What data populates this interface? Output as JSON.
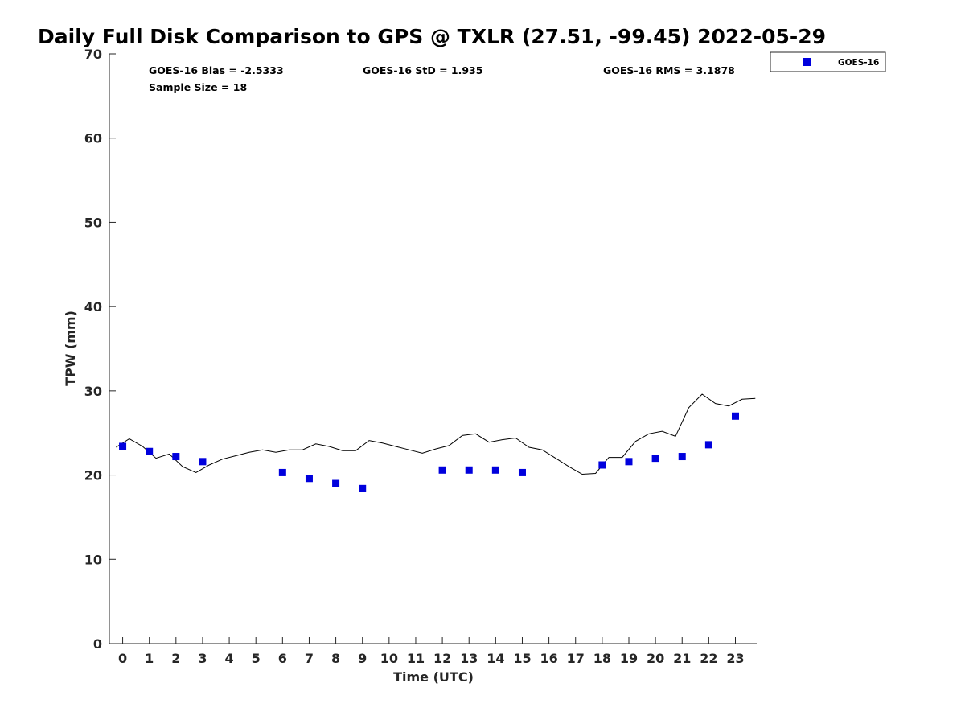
{
  "chart_data": {
    "type": "scatter",
    "title": "Daily Full Disk Comparison to GPS @ TXLR (27.51, -99.45) 2022-05-29",
    "xlabel": "Time (UTC)",
    "ylabel": "TPW (mm)",
    "xlim": [
      -0.5,
      23.8
    ],
    "ylim": [
      0,
      70
    ],
    "xticks": [
      0,
      1,
      2,
      3,
      4,
      5,
      6,
      7,
      8,
      9,
      10,
      11,
      12,
      13,
      14,
      15,
      16,
      17,
      18,
      19,
      20,
      21,
      22,
      23
    ],
    "yticks": [
      0,
      10,
      20,
      30,
      40,
      50,
      60,
      70
    ],
    "grid": false,
    "legend_position": "top-right-outside",
    "stats": {
      "bias": "GOES-16 Bias = -2.5333",
      "std": "GOES-16 StD = 1.935",
      "rms": "GOES-16 RMS = 3.1878",
      "sample": "Sample Size = 18"
    },
    "series": [
      {
        "name": "GOES-16",
        "kind": "scatter",
        "color": "#0000dd",
        "x": [
          0,
          1,
          2,
          3,
          6,
          7,
          8,
          9,
          12,
          13,
          14,
          15,
          18,
          19,
          20,
          21,
          22,
          23
        ],
        "y": [
          23.4,
          22.8,
          22.2,
          21.6,
          20.3,
          19.6,
          19.0,
          18.4,
          20.6,
          20.6,
          20.6,
          20.3,
          21.2,
          21.6,
          22.0,
          22.2,
          23.6,
          27.0
        ]
      },
      {
        "kind": "line",
        "color": "#000000",
        "x": [
          -0.25,
          0.25,
          0.75,
          1.25,
          1.75,
          2.25,
          2.75,
          3.25,
          3.75,
          4.25,
          4.75,
          5.25,
          5.75,
          6.25,
          6.75,
          7.25,
          7.75,
          8.25,
          8.75,
          9.25,
          9.75,
          10.25,
          10.75,
          11.25,
          11.75,
          12.25,
          12.75,
          13.25,
          13.75,
          14.25,
          14.75,
          15.25,
          15.75,
          16.25,
          16.75,
          17.25,
          17.75,
          18.25,
          18.75,
          19.25,
          19.75,
          20.25,
          20.75,
          21.25,
          21.75,
          22.25,
          22.75,
          23.25,
          23.75
        ],
        "y": [
          23.3,
          24.3,
          23.4,
          22.0,
          22.5,
          21.0,
          20.3,
          21.2,
          21.9,
          22.3,
          22.7,
          23.0,
          22.7,
          23.0,
          23.0,
          23.7,
          23.4,
          22.9,
          22.9,
          24.1,
          23.8,
          23.4,
          23.0,
          22.6,
          23.1,
          23.5,
          24.7,
          24.9,
          23.9,
          24.2,
          24.4,
          23.3,
          23.0,
          22.0,
          21.0,
          20.1,
          20.2,
          22.1,
          22.1,
          24.0,
          24.9,
          25.2,
          24.6,
          28.0,
          29.6,
          28.5,
          28.2,
          29.0,
          29.1
        ]
      }
    ]
  }
}
